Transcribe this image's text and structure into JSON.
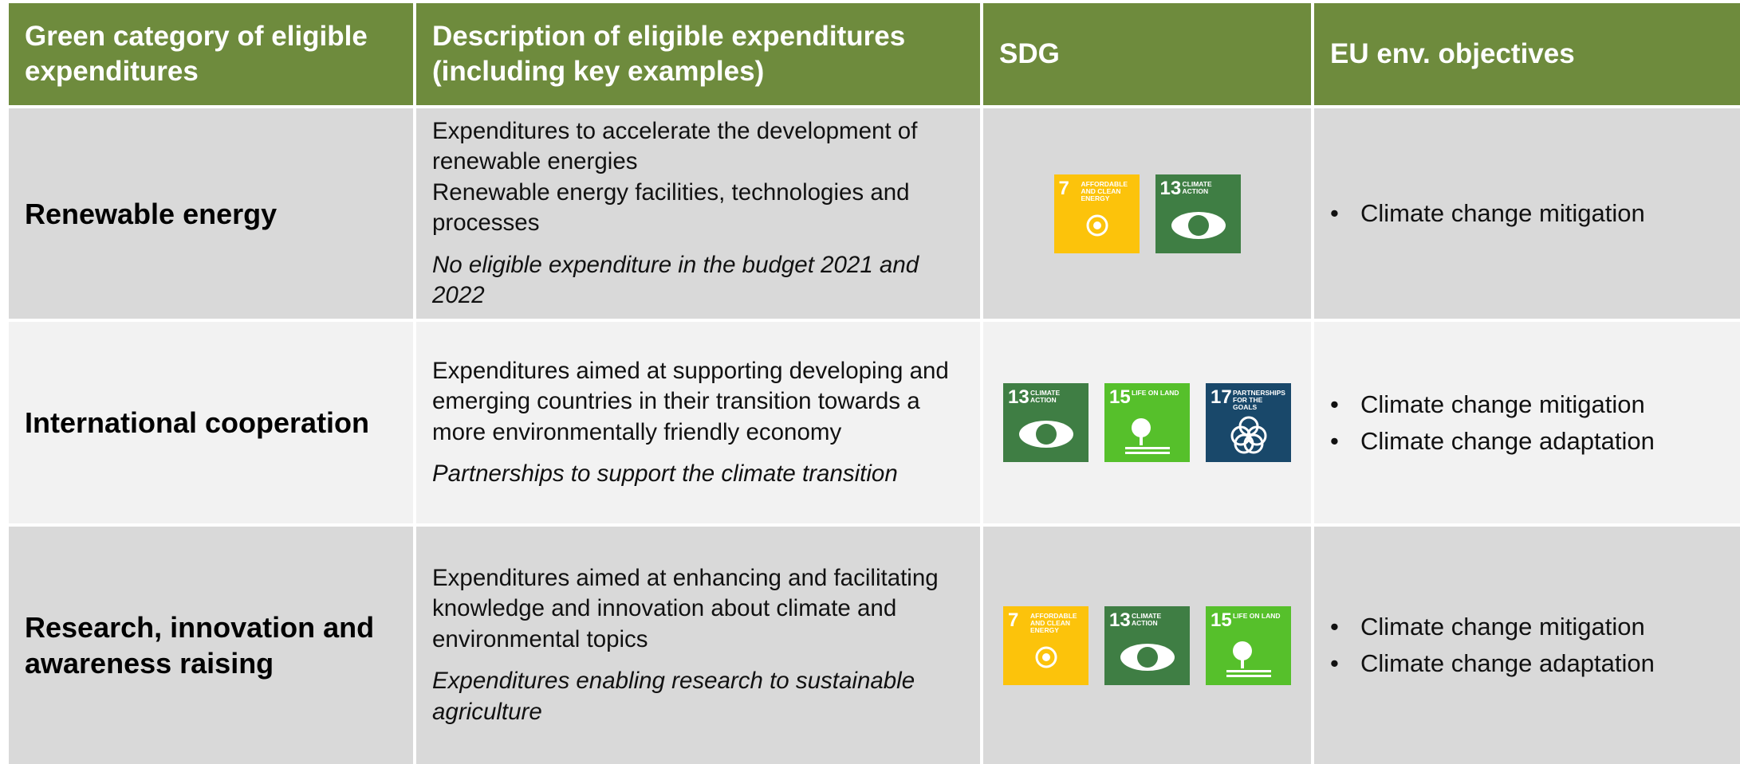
{
  "table": {
    "headers": [
      "Green category of eligible expenditures",
      "Description of eligible expenditures (including key examples)",
      "SDG",
      "EU env. objectives"
    ],
    "rows": [
      {
        "category": "Renewable energy",
        "description": [
          "Expenditures to accelerate the development of renewable energies",
          "Renewable energy facilities, technologies and processes"
        ],
        "note": "No eligible expenditure in the budget 2021 and 2022",
        "sdgs": [
          {
            "number": 7,
            "label": "AFFORDABLE AND CLEAN ENERGY",
            "color": "#fcc30b"
          },
          {
            "number": 13,
            "label": "CLIMATE ACTION",
            "color": "#3f7e44"
          }
        ],
        "objectives": [
          "Climate change mitigation"
        ]
      },
      {
        "category": "International cooperation",
        "description": [
          "Expenditures aimed at supporting developing and emerging countries in their transition towards a more environmentally friendly economy"
        ],
        "note": "Partnerships to support the climate transition",
        "sdgs": [
          {
            "number": 13,
            "label": "CLIMATE ACTION",
            "color": "#3f7e44"
          },
          {
            "number": 15,
            "label": "LIFE ON LAND",
            "color": "#56c02b"
          },
          {
            "number": 17,
            "label": "PARTNERSHIPS FOR THE GOALS",
            "color": "#19486a"
          }
        ],
        "objectives": [
          "Climate change mitigation",
          "Climate change adaptation"
        ]
      },
      {
        "category": "Research, innovation and awareness raising",
        "description": [
          "Expenditures aimed at enhancing and facilitating knowledge and innovation about climate and environmental topics"
        ],
        "note": "Expenditures enabling research to sustainable agriculture",
        "sdgs": [
          {
            "number": 7,
            "label": "AFFORDABLE AND CLEAN ENERGY",
            "color": "#fcc30b"
          },
          {
            "number": 13,
            "label": "CLIMATE ACTION",
            "color": "#3f7e44"
          },
          {
            "number": 15,
            "label": "LIFE ON LAND",
            "color": "#56c02b"
          }
        ],
        "objectives": [
          "Climate change mitigation",
          "Climate change adaptation"
        ]
      }
    ]
  }
}
